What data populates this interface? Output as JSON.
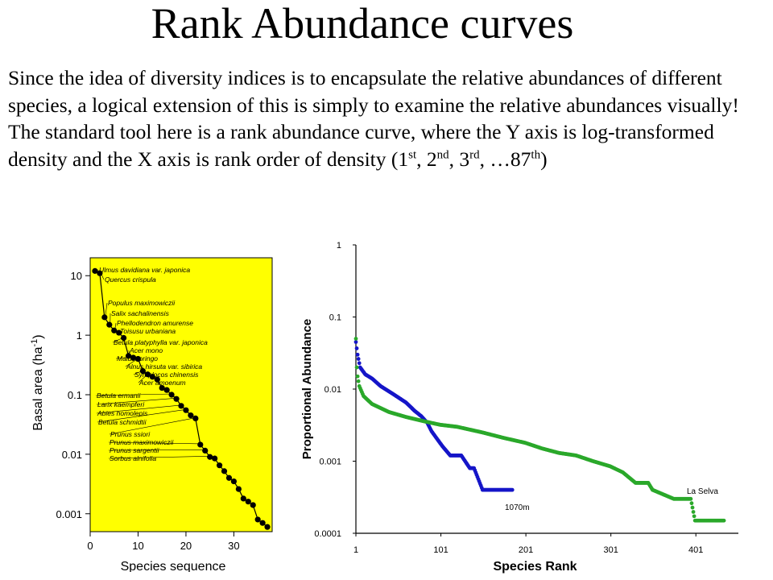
{
  "title": "Rank Abundance curves",
  "paragraph": {
    "text": "Since the idea of diversity indices is to encapsulate the relative abundances of different species, a logical extension of this is simply to examine the relative abundances visually!  The standard tool here is a rank abundance curve, where the Y axis is log-transformed density and the X axis is rank order of density (1",
    "sup_1": "st",
    "sep_1": ", 2",
    "sup_2": "nd",
    "sep_2": ", 3",
    "sup_3": "rd",
    "sep_3": ", …87",
    "sup_4": "th",
    "end": ")"
  },
  "chart_data": [
    {
      "type": "line",
      "xlabel": "Species sequence",
      "ylabel": "Basal area (ha",
      "ylabel_sup": "-1",
      "ylabel_close": ")",
      "yscale": "log",
      "xlim": [
        0,
        38
      ],
      "ylim": [
        0.0005,
        20
      ],
      "xticks": [
        0,
        10,
        20,
        30
      ],
      "yticks": [
        {
          "v": 10,
          "label": "10"
        },
        {
          "v": 1,
          "label": "1"
        },
        {
          "v": 0.1,
          "label": "0.1"
        },
        {
          "v": 0.01,
          "label": "0.01"
        },
        {
          "v": 0.001,
          "label": "0.001"
        }
      ],
      "background": "#ffff00",
      "series": [
        {
          "x": [
            1,
            2,
            3,
            4,
            5,
            6,
            7,
            8,
            9,
            10,
            11,
            12,
            13,
            14,
            15,
            16,
            17,
            18,
            19,
            20,
            21,
            22,
            23,
            24,
            25,
            26,
            27,
            28,
            29,
            30,
            31,
            32,
            33,
            34,
            35,
            36,
            37
          ],
          "y": [
            12,
            11,
            2,
            1.5,
            1.2,
            1.1,
            0.9,
            0.45,
            0.42,
            0.4,
            0.25,
            0.22,
            0.2,
            0.18,
            0.13,
            0.12,
            0.1,
            0.085,
            0.065,
            0.055,
            0.045,
            0.04,
            0.0145,
            0.0115,
            0.009,
            0.0085,
            0.0065,
            0.0052,
            0.004,
            0.0035,
            0.0026,
            0.0018,
            0.0016,
            0.0014,
            0.0008,
            0.0007,
            0.0006
          ]
        }
      ],
      "annotations": [
        "Ulmus davidiana  var. japonica",
        "Quercus crispula",
        "Populus maximowiczii",
        "Salix sachalinensis",
        "Phellodendron amurense",
        "Toisusu urbaniana",
        "Betula platyphylla  var. japonica",
        "Acer mono",
        "Malus toringo",
        "Alnus hirsuta var. sibirica",
        "Symplocos chinensis",
        "Acer amoenum",
        "Betula ermanii",
        "Larix kaempferi",
        "Abies homolepis",
        "Betula schmidtii",
        "Prunus ssiori",
        "Prunus maximowiczii",
        "Prunus sargentii",
        "Sorbus alnifolia"
      ]
    },
    {
      "type": "scatter",
      "xlabel": "Species Rank",
      "ylabel": "Proportional Abundance",
      "yscale": "log",
      "xlim": [
        1,
        451
      ],
      "ylim": [
        0.0001,
        1
      ],
      "xticks": [
        {
          "v": 1,
          "label": "1"
        },
        {
          "v": 101,
          "label": "101"
        },
        {
          "v": 201,
          "label": "201"
        },
        {
          "v": 301,
          "label": "301"
        },
        {
          "v": 401,
          "label": "401"
        }
      ],
      "yticks": [
        {
          "v": 1,
          "label": "1"
        },
        {
          "v": 0.1,
          "label": "0.1"
        },
        {
          "v": 0.01,
          "label": "0.01"
        },
        {
          "v": 0.001,
          "label": "0.001"
        },
        {
          "v": 0.0001,
          "label": "0.0001"
        }
      ],
      "series": [
        {
          "name": "1070m",
          "color": "#1515c8",
          "points": [
            [
              1,
              0.045
            ],
            [
              3,
              0.03
            ],
            [
              6,
              0.02
            ],
            [
              12,
              0.016
            ],
            [
              20,
              0.014
            ],
            [
              30,
              0.011
            ],
            [
              45,
              0.0085
            ],
            [
              60,
              0.0065
            ],
            [
              70,
              0.005
            ],
            [
              78,
              0.0042
            ],
            [
              85,
              0.0034
            ],
            [
              90,
              0.0026
            ],
            [
              97,
              0.002
            ],
            [
              103,
              0.0016
            ],
            [
              112,
              0.0012
            ],
            [
              125,
              0.0012
            ],
            [
              135,
              0.0008
            ],
            [
              140,
              0.0008
            ],
            [
              150,
              0.0004
            ],
            [
              185,
              0.0004
            ]
          ]
        },
        {
          "name": "La Selva",
          "color": "#2aa82a",
          "points": [
            [
              1,
              0.05
            ],
            [
              2,
              0.02
            ],
            [
              3,
              0.015
            ],
            [
              5,
              0.011
            ],
            [
              10,
              0.008
            ],
            [
              20,
              0.0062
            ],
            [
              40,
              0.0048
            ],
            [
              60,
              0.0041
            ],
            [
              80,
              0.0036
            ],
            [
              100,
              0.0032
            ],
            [
              120,
              0.003
            ],
            [
              150,
              0.0025
            ],
            [
              175,
              0.0021
            ],
            [
              200,
              0.0018
            ],
            [
              220,
              0.0015
            ],
            [
              240,
              0.0013
            ],
            [
              260,
              0.0012
            ],
            [
              280,
              0.001
            ],
            [
              300,
              0.00085
            ],
            [
              315,
              0.0007
            ],
            [
              330,
              0.0005
            ],
            [
              345,
              0.0005
            ],
            [
              350,
              0.0004
            ],
            [
              375,
              0.0003
            ],
            [
              395,
              0.0003
            ],
            [
              400,
              0.00015
            ],
            [
              434,
              0.00015
            ]
          ]
        }
      ],
      "labels": {
        "la_selva": "La Selva",
        "m1070": "1070m"
      }
    }
  ]
}
